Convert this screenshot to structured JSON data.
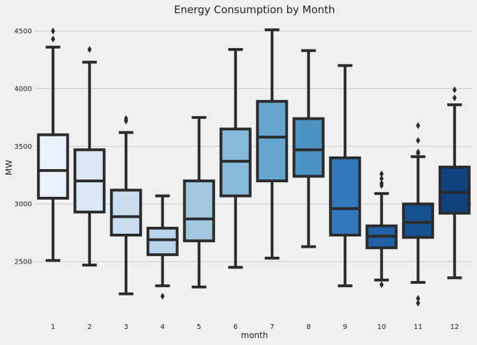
{
  "chart_data": {
    "type": "box",
    "title": "Energy Consumption by Month",
    "xlabel": "month",
    "ylabel": "MW",
    "ylim": [
      2000,
      4600
    ],
    "yticks": [
      2500,
      3000,
      3500,
      4000,
      4500
    ],
    "grid": "horizontal",
    "categories": [
      "1",
      "2",
      "3",
      "4",
      "5",
      "6",
      "7",
      "8",
      "9",
      "10",
      "11",
      "12"
    ],
    "colors": [
      "#eaf2fb",
      "#dbe7f4",
      "#cadcee",
      "#b9d3ea",
      "#a2c8df",
      "#86b9da",
      "#66a5d0",
      "#4e92c3",
      "#3278b8",
      "#2060a6",
      "#15508f",
      "#0e417d"
    ],
    "edge_color": "#2b2b2b",
    "boxes": [
      {
        "month": "1",
        "whislo": 2510,
        "q1": 3050,
        "med": 3290,
        "q3": 3600,
        "whishi": 4360,
        "fliers": [
          4430,
          4500
        ]
      },
      {
        "month": "2",
        "whislo": 2470,
        "q1": 2930,
        "med": 3200,
        "q3": 3470,
        "whishi": 4230,
        "fliers": [
          4340
        ]
      },
      {
        "month": "3",
        "whislo": 2220,
        "q1": 2730,
        "med": 2890,
        "q3": 3120,
        "whishi": 3620,
        "fliers": [
          3720,
          3740
        ]
      },
      {
        "month": "4",
        "whislo": 2290,
        "q1": 2560,
        "med": 2690,
        "q3": 2790,
        "whishi": 3070,
        "fliers": [
          2200
        ]
      },
      {
        "month": "5",
        "whislo": 2280,
        "q1": 2680,
        "med": 2870,
        "q3": 3200,
        "whishi": 3750,
        "fliers": []
      },
      {
        "month": "6",
        "whislo": 2450,
        "q1": 3070,
        "med": 3370,
        "q3": 3650,
        "whishi": 4340,
        "fliers": []
      },
      {
        "month": "7",
        "whislo": 2530,
        "q1": 3200,
        "med": 3580,
        "q3": 3890,
        "whishi": 4510,
        "fliers": []
      },
      {
        "month": "8",
        "whislo": 2630,
        "q1": 3240,
        "med": 3470,
        "q3": 3740,
        "whishi": 4330,
        "fliers": []
      },
      {
        "month": "9",
        "whislo": 2290,
        "q1": 2730,
        "med": 2960,
        "q3": 3400,
        "whishi": 4200,
        "fliers": []
      },
      {
        "month": "10",
        "whislo": 2340,
        "q1": 2620,
        "med": 2720,
        "q3": 2810,
        "whishi": 3090,
        "fliers": [
          2300,
          3160,
          3180,
          3220,
          3260
        ]
      },
      {
        "month": "11",
        "whislo": 2320,
        "q1": 2710,
        "med": 2840,
        "q3": 3000,
        "whishi": 3410,
        "fliers": [
          2140,
          2180,
          3440,
          3450,
          3550,
          3680
        ]
      },
      {
        "month": "12",
        "whislo": 2360,
        "q1": 2920,
        "med": 3100,
        "q3": 3320,
        "whishi": 3860,
        "fliers": [
          3920,
          3990
        ]
      }
    ]
  }
}
